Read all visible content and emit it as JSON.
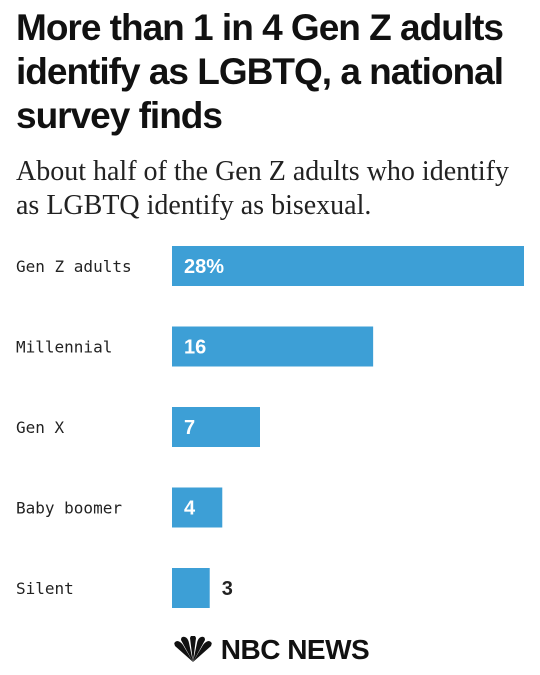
{
  "header": {
    "title": "More than 1 in 4 Gen Z adults identify as LGBTQ, a national survey finds",
    "subtitle": "About half of the Gen Z adults who identify as LGBTQ identify as bisexual."
  },
  "chart_data": {
    "type": "bar",
    "orientation": "horizontal",
    "categories": [
      "Gen Z adults",
      "Millennial",
      "Gen X",
      "Baby boomer",
      "Silent"
    ],
    "values": [
      28,
      16,
      7,
      4,
      3
    ],
    "data_labels": [
      "28%",
      "16",
      "7",
      "4",
      "3"
    ],
    "unit": "%",
    "xlim": [
      0,
      28
    ],
    "bar_color": "#3d9fd6",
    "grid": false,
    "legend": "none"
  },
  "footer": {
    "logo_text": "NBC NEWS",
    "logo_icon": "peacock-icon"
  }
}
